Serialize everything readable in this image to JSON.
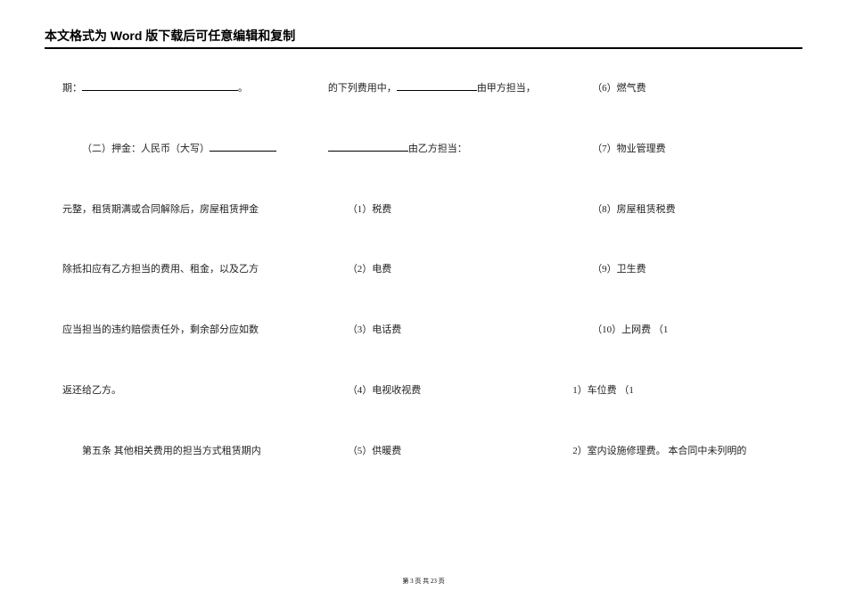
{
  "header": {
    "title": "本文格式为 Word 版下载后可任意编辑和复制"
  },
  "columns": {
    "left": {
      "block1_a": "期：",
      "block1_b": "。",
      "block2_a": "（二）押金：人民币（大写）",
      "block3": "元整，租赁期满或合同解除后，房屋租赁押金",
      "block4": "除抵扣应有乙方担当的费用、租金，以及乙方",
      "block5": "应当担当的违约赔偿责任外，剩余部分应如数",
      "block6": "返还给乙方。",
      "block7": "第五条 其他相关费用的担当方式租赁期内"
    },
    "mid": {
      "block1_a": "的下列费用中，",
      "block1_b": "由甲方担当，",
      "block2": "由乙方担当：",
      "block3": "（1）税费",
      "block4": "（2）电费",
      "block5": "（3）电话费",
      "block6": "（4）电视收视费",
      "block7": "（5）供暖费"
    },
    "right": {
      "block1": "（6）燃气费",
      "block2": "（7）物业管理费",
      "block3": "（8）房屋租赁税费",
      "block4": "（9）卫生费",
      "block5": "（10）上网费 （1",
      "block6": "1）车位费 （1",
      "block7": "2）室内设施修理费。 本合同中未列明的"
    }
  },
  "footer": {
    "prefix": "第 ",
    "current": "3",
    "mid": " 页 共 ",
    "total": "23",
    "suffix": " 页"
  }
}
